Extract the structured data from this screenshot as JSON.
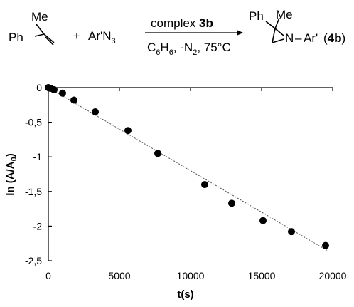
{
  "scheme": {
    "substituent": "Me",
    "reactant_phenyl": "Ph",
    "plus": "+",
    "azide_main": "Ar'N",
    "azide_sub": "3",
    "reagent_prefix": "complex ",
    "reagent_bold": "3b",
    "conditions_c": "C",
    "conditions_c_sub": "6",
    "conditions_h": "H",
    "conditions_h_sub": "6",
    "conditions_rest": ", -N",
    "conditions_n_sub": "2",
    "conditions_temp": ", 75°C",
    "product_phenyl": "Ph",
    "product_methyl": "Me",
    "product_nitrogen": "N",
    "product_dash": "–",
    "product_aryl": "Ar'",
    "product_label_open": "(",
    "product_label_bold": "4b",
    "product_label_close": ")"
  },
  "colors": {
    "marker": "#000000",
    "trendline": "#555555",
    "axis": "#000000"
  },
  "chart_data": {
    "type": "scatter",
    "xlabel": "t(s)",
    "ylabel_main": "ln (A/A",
    "ylabel_sub": "0",
    "ylabel_close": ")",
    "xlim": [
      0,
      20000
    ],
    "ylim": [
      -2.5,
      0
    ],
    "xticks": [
      0,
      5000,
      10000,
      15000,
      20000
    ],
    "xtick_labels": [
      "0",
      "5000",
      "10000",
      "15000",
      "20000"
    ],
    "yticks": [
      0,
      -0.5,
      -1,
      -1.5,
      -2,
      -2.5
    ],
    "ytick_labels": [
      "0",
      "-0,5",
      "-1",
      "-1,5",
      "-2",
      "-2,5"
    ],
    "grid": false,
    "points": [
      {
        "x": 0,
        "y": 0
      },
      {
        "x": 150,
        "y": -0.01
      },
      {
        "x": 400,
        "y": -0.03
      },
      {
        "x": 1000,
        "y": -0.08
      },
      {
        "x": 1800,
        "y": -0.18
      },
      {
        "x": 3300,
        "y": -0.35
      },
      {
        "x": 5600,
        "y": -0.62
      },
      {
        "x": 7700,
        "y": -0.95
      },
      {
        "x": 11000,
        "y": -1.4
      },
      {
        "x": 12900,
        "y": -1.67
      },
      {
        "x": 15100,
        "y": -1.92
      },
      {
        "x": 17100,
        "y": -2.08
      },
      {
        "x": 19500,
        "y": -2.28
      }
    ],
    "trendline": {
      "x": [
        0,
        19600
      ],
      "y": [
        0,
        -2.35
      ]
    }
  }
}
